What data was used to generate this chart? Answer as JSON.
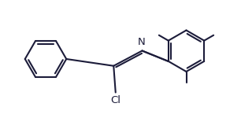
{
  "background_color": "#ffffff",
  "line_color": "#1c1c3a",
  "line_width": 1.5,
  "text_color": "#1c1c3a",
  "font_size_Cl": 9.5,
  "font_size_N": 9.5,
  "label_Cl": "Cl",
  "label_N": "N"
}
